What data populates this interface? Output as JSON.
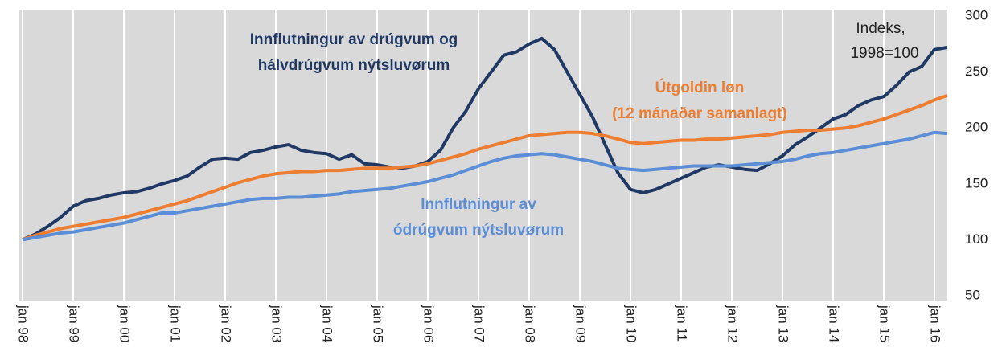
{
  "chart_data": {
    "type": "line",
    "categories": [
      "jan 98",
      null,
      null,
      null,
      "jan 99",
      null,
      null,
      null,
      "jan 00",
      null,
      null,
      null,
      "jan 01",
      null,
      null,
      null,
      "jan 02",
      null,
      null,
      null,
      "jan 03",
      null,
      null,
      null,
      "jan 04",
      null,
      null,
      null,
      "jan 05",
      null,
      null,
      null,
      "jan 06",
      null,
      null,
      null,
      "jan 07",
      null,
      null,
      null,
      "jan 08",
      null,
      null,
      null,
      "jan 09",
      null,
      null,
      null,
      "jan 10",
      null,
      null,
      null,
      "jan 11",
      null,
      null,
      null,
      "jan 12",
      null,
      null,
      null,
      "jan 13",
      null,
      null,
      null,
      "jan 14",
      null,
      null,
      null,
      "jan 15",
      null,
      null,
      null,
      "jan 16",
      null
    ],
    "series": [
      {
        "label": [
          "Innflutningur av drúgvum og",
          "hálvdrúgvum nýtsluvørum"
        ],
        "color": "#1f3864",
        "values": [
          100,
          105,
          112,
          120,
          130,
          135,
          137,
          140,
          142,
          143,
          146,
          150,
          153,
          157,
          165,
          172,
          173,
          172,
          178,
          180,
          183,
          185,
          180,
          178,
          177,
          172,
          176,
          168,
          167,
          165,
          164,
          166,
          170,
          180,
          200,
          215,
          235,
          250,
          265,
          268,
          275,
          280,
          270,
          250,
          230,
          210,
          185,
          160,
          145,
          142,
          145,
          150,
          155,
          160,
          165,
          167,
          165,
          163,
          162,
          168,
          175,
          185,
          192,
          200,
          208,
          212,
          220,
          225,
          228,
          238,
          250,
          255,
          270,
          272
        ]
      },
      {
        "label": [
          "Útgoldin løn",
          "(12 mánaðar samanlagt)"
        ],
        "color": "#ed7d31",
        "values": [
          100,
          104,
          107,
          110,
          112,
          114,
          116,
          118,
          120,
          123,
          126,
          129,
          132,
          135,
          139,
          143,
          147,
          151,
          154,
          157,
          159,
          160,
          161,
          161,
          162,
          162,
          163,
          164,
          164,
          164,
          165,
          166,
          168,
          171,
          174,
          177,
          181,
          184,
          187,
          190,
          193,
          194,
          195,
          196,
          196,
          195,
          193,
          190,
          187,
          186,
          187,
          188,
          189,
          189,
          190,
          190,
          191,
          192,
          193,
          194,
          196,
          197,
          198,
          198,
          199,
          200,
          202,
          205,
          208,
          212,
          216,
          220,
          225,
          229
        ]
      },
      {
        "label": [
          "Innflutningur av",
          "ódrúgvum nýtsluvørum"
        ],
        "color": "#5b8ed6",
        "values": [
          100,
          102,
          104,
          106,
          107,
          109,
          111,
          113,
          115,
          118,
          121,
          124,
          124,
          126,
          128,
          130,
          132,
          134,
          136,
          137,
          137,
          138,
          138,
          139,
          140,
          141,
          143,
          144,
          145,
          146,
          148,
          150,
          152,
          155,
          158,
          162,
          166,
          170,
          173,
          175,
          176,
          177,
          176,
          174,
          172,
          170,
          167,
          164,
          163,
          162,
          163,
          164,
          165,
          166,
          166,
          166,
          166,
          167,
          168,
          169,
          170,
          172,
          175,
          177,
          178,
          180,
          182,
          184,
          186,
          188,
          190,
          193,
          196,
          195
        ]
      }
    ],
    "annotation": [
      "Indeks,",
      "1998=100"
    ],
    "ylim": [
      50,
      300
    ],
    "yticks": [
      50,
      100,
      150,
      200,
      250,
      300
    ],
    "grid": "x"
  }
}
